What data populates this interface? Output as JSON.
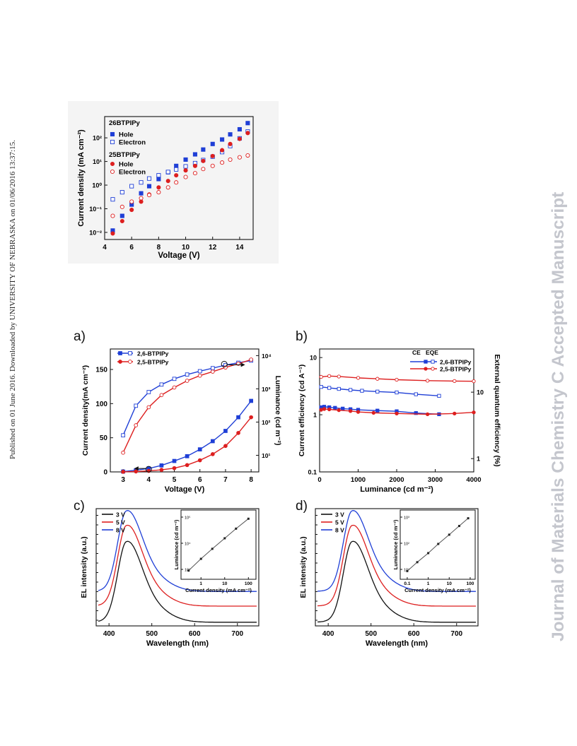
{
  "side_text_left": "Published on 01 June 2016. Downloaded by UNIVERSITY OF NEBRASKA on 01/06/2016 13:37:15.",
  "side_text_right": "Journal of Materials Chemistry C Accepted Manuscript",
  "panel_letters": {
    "a": "a)",
    "b": "b)",
    "c": "c)",
    "d": "d)"
  },
  "colors": {
    "blue": "#1f3fd6",
    "red": "#dd1f1f",
    "black": "#111111"
  },
  "chart_data": [
    {
      "id": "top",
      "type": "scatter",
      "xlabel": "Voltage (V)",
      "ylabel": "Current density (mA cm⁻²)",
      "x_ticks": [
        "4",
        "6",
        "8",
        "10",
        "12",
        "14"
      ],
      "y_ticks": [
        "10⁻²",
        "10⁻¹",
        "10⁰",
        "10¹",
        "10²"
      ],
      "xlim": [
        4,
        15
      ],
      "ylim_log10": [
        -2.3,
        2.9
      ],
      "y_scale": "log",
      "legend_groups": [
        "26BTPIPy",
        "25BTPIPy"
      ],
      "series": [
        {
          "name": "Hole",
          "group": "26BTPIPy",
          "color": "#1f3fd6",
          "marker": "filled-square",
          "x": [
            4.6,
            5.3,
            6.0,
            6.7,
            7.3,
            8.0,
            8.7,
            9.3,
            10.0,
            10.7,
            11.3,
            12.0,
            12.7,
            13.3,
            14.0,
            14.6
          ],
          "y": [
            0.012,
            0.05,
            0.15,
            0.45,
            0.9,
            1.8,
            3.5,
            6.5,
            12,
            20,
            32,
            55,
            85,
            140,
            230,
            420
          ]
        },
        {
          "name": "Electron",
          "group": "26BTPIPy",
          "color": "#1f3fd6",
          "marker": "open-square",
          "x": [
            4.6,
            5.3,
            6.0,
            6.7,
            7.3,
            8.0,
            8.7,
            9.3,
            10.0,
            10.7,
            11.3,
            12.0,
            12.7,
            13.3,
            14.0,
            14.6
          ],
          "y": [
            0.25,
            0.5,
            0.9,
            1.3,
            1.9,
            2.6,
            3.6,
            4.6,
            6.2,
            8.5,
            11.5,
            16,
            25,
            45,
            95,
            185
          ]
        },
        {
          "name": "Hole",
          "group": "25BTPIPy",
          "color": "#dd1f1f",
          "marker": "filled-circle",
          "x": [
            4.6,
            5.3,
            6.0,
            6.7,
            7.3,
            8.0,
            8.7,
            9.3,
            10.0,
            10.7,
            11.3,
            12.0,
            12.7,
            13.3,
            14.0,
            14.6
          ],
          "y": [
            0.009,
            0.03,
            0.09,
            0.2,
            0.4,
            0.8,
            1.5,
            2.6,
            4.2,
            6.5,
            10.5,
            17,
            30,
            55,
            90,
            160
          ]
        },
        {
          "name": "Electron",
          "group": "25BTPIPy",
          "color": "#dd1f1f",
          "marker": "open-circle",
          "x": [
            4.6,
            5.3,
            6.0,
            6.7,
            7.3,
            8.0,
            8.7,
            9.3,
            10.0,
            10.7,
            11.3,
            12.0,
            12.7,
            13.3,
            14.0,
            14.6
          ],
          "y": [
            0.05,
            0.12,
            0.2,
            0.28,
            0.38,
            0.5,
            0.8,
            1.3,
            2.2,
            3.2,
            4.8,
            6.5,
            9.0,
            12,
            15,
            18
          ]
        }
      ]
    },
    {
      "id": "a",
      "type": "line",
      "xlabel": "Voltage (V)",
      "ylabel": "Current density(mA cm⁻²)",
      "y2label": "Luminance (cd m⁻²)",
      "x_ticks": [
        "3",
        "4",
        "5",
        "6",
        "7",
        "8"
      ],
      "y_ticks": [
        "0",
        "50",
        "100",
        "150"
      ],
      "y2_ticks": [
        "10¹",
        "10²",
        "10³",
        "10⁴"
      ],
      "xlim": [
        2.5,
        8.3
      ],
      "ylim": [
        0,
        180
      ],
      "y2lim_log10": [
        0.5,
        4.2
      ],
      "y2_scale": "log",
      "legend": [
        "2,6-BTPIPy",
        "2,5-BTPIPy"
      ],
      "series": [
        {
          "name": "2,6-BTPIPy",
          "quantity": "current density",
          "color": "#1f3fd6",
          "marker": "filled-square",
          "x": [
            3,
            3.5,
            4,
            4.5,
            5,
            5.5,
            6,
            6.5,
            7,
            7.5,
            8
          ],
          "y": [
            0.5,
            2.5,
            5,
            9.5,
            16,
            23,
            33,
            45,
            60,
            80,
            104
          ]
        },
        {
          "name": "2,5-BTPIPy",
          "quantity": "current density",
          "color": "#dd1f1f",
          "marker": "filled-circle",
          "x": [
            3,
            3.5,
            4,
            4.5,
            5,
            5.5,
            6,
            6.5,
            7,
            7.5,
            8
          ],
          "y": [
            0.1,
            0.6,
            1.5,
            3,
            5.5,
            10,
            17,
            26,
            38,
            57,
            80
          ]
        },
        {
          "name": "2,6-BTPIPy",
          "quantity": "luminance",
          "color": "#1f3fd6",
          "marker": "open-square",
          "x": [
            3,
            3.5,
            4,
            4.5,
            5,
            5.5,
            6,
            6.5,
            7,
            7.5,
            8
          ],
          "y": [
            40,
            310,
            800,
            1350,
            2000,
            2700,
            3400,
            4200,
            5200,
            6100,
            7100
          ]
        },
        {
          "name": "2,5-BTPIPy",
          "quantity": "luminance",
          "color": "#dd1f1f",
          "marker": "open-circle",
          "x": [
            3,
            3.5,
            4,
            4.5,
            5,
            5.5,
            6,
            6.5,
            7,
            7.5,
            8
          ],
          "y": [
            12,
            80,
            280,
            650,
            1100,
            1750,
            2500,
            3300,
            4400,
            5700,
            7600
          ]
        }
      ]
    },
    {
      "id": "b",
      "type": "line",
      "xlabel": "Luminance (cd m⁻²)",
      "ylabel": "Current efficiency (cd A⁻¹)",
      "y2label": "External quantum efficiency (%)",
      "x_ticks": [
        "0",
        "1000",
        "2000",
        "3000",
        "4000"
      ],
      "y_ticks": [
        "0.1",
        "1",
        "10"
      ],
      "y2_ticks": [
        "1",
        "10"
      ],
      "xlim": [
        0,
        4000
      ],
      "ylim_log10": [
        -1,
        1.15
      ],
      "y_scale": "log",
      "legend": {
        "header": [
          "CE",
          "EQE"
        ],
        "rows": [
          "2,6-BTPIPy",
          "2,5-BTPIPy"
        ]
      },
      "series": [
        {
          "name": "2,6-BTPIPy",
          "quantity": "CE",
          "color": "#1f3fd6",
          "marker": "filled-square",
          "x": [
            40,
            120,
            250,
            400,
            600,
            800,
            1000,
            1500,
            2000,
            2500,
            3100
          ],
          "y": [
            1.35,
            1.38,
            1.35,
            1.32,
            1.28,
            1.25,
            1.22,
            1.18,
            1.15,
            1.07,
            1.02
          ]
        },
        {
          "name": "2,5-BTPIPy",
          "quantity": "CE",
          "color": "#dd1f1f",
          "marker": "filled-circle",
          "x": [
            40,
            120,
            250,
            500,
            800,
            1000,
            1400,
            2000,
            2800,
            3500,
            4000
          ],
          "y": [
            1.22,
            1.26,
            1.24,
            1.2,
            1.16,
            1.12,
            1.08,
            1.05,
            1.02,
            1.05,
            1.1
          ]
        },
        {
          "name": "2,6-BTPIPy",
          "quantity": "EQE",
          "color": "#1f3fd6",
          "marker": "open-square",
          "x": [
            40,
            250,
            500,
            800,
            1100,
            1500,
            2000,
            2500,
            3100
          ],
          "y": [
            12,
            11.6,
            11.2,
            10.8,
            10.5,
            10.2,
            9.9,
            9.3,
            8.8
          ]
        },
        {
          "name": "2,5-BTPIPy",
          "quantity": "EQE",
          "color": "#dd1f1f",
          "marker": "open-circle",
          "x": [
            40,
            250,
            500,
            1000,
            1500,
            2000,
            2800,
            3500,
            4000
          ],
          "y": [
            17,
            17.5,
            17.2,
            16.4,
            15.9,
            15.4,
            14.9,
            14.7,
            14.6
          ]
        }
      ]
    },
    {
      "id": "c",
      "type": "line",
      "xlabel": "Wavelength (nm)",
      "ylabel": "EL intensity (a.u.)",
      "x_ticks": [
        "400",
        "500",
        "600",
        "700"
      ],
      "xlim": [
        370,
        750
      ],
      "legend": [
        "3 V",
        "5 V",
        "8 V"
      ],
      "peak_nm": 440,
      "series": [
        {
          "name": "3 V",
          "color": "#111111",
          "offset": 0.0,
          "peak": 1.0
        },
        {
          "name": "5 V",
          "color": "#dd1f1f",
          "offset": 0.22,
          "peak": 1.0
        },
        {
          "name": "8 V",
          "color": "#1f3fd6",
          "offset": 0.42,
          "peak": 1.0
        }
      ],
      "inset": {
        "type": "line",
        "xlabel": "Current density (mA cm⁻²)",
        "ylabel": "Luminance (cd m⁻²)",
        "x_ticks": [
          "1",
          "10",
          "100"
        ],
        "y_ticks": [
          "10³",
          "10⁴",
          "10⁵"
        ],
        "x_scale": "log",
        "y_scale": "log",
        "x": [
          0.3,
          1,
          3,
          10,
          30,
          100
        ],
        "y": [
          20,
          80,
          260,
          900,
          2800,
          9000
        ]
      }
    },
    {
      "id": "d",
      "type": "line",
      "xlabel": "Wavelength (nm)",
      "ylabel": "EL intensity (a.u.)",
      "x_ticks": [
        "400",
        "500",
        "600",
        "700"
      ],
      "xlim": [
        370,
        750
      ],
      "legend": [
        "3 V",
        "5 V",
        "8 V"
      ],
      "peak_nm": 455,
      "series": [
        {
          "name": "3 V",
          "color": "#111111",
          "offset": 0.0,
          "peak": 1.0
        },
        {
          "name": "5 V",
          "color": "#dd1f1f",
          "offset": 0.22,
          "peak": 1.0
        },
        {
          "name": "8 V",
          "color": "#1f3fd6",
          "offset": 0.42,
          "peak": 1.0
        }
      ],
      "inset": {
        "type": "line",
        "xlabel": "Current density (mA cm⁻²)",
        "ylabel": "Luminance (cd m⁻²)",
        "x_ticks": [
          "0.1",
          "1",
          "10",
          "100"
        ],
        "y_ticks": [
          "10¹",
          "10²",
          "10³"
        ],
        "x_scale": "log",
        "y_scale": "log",
        "x": [
          0.1,
          0.3,
          1,
          3,
          10,
          30,
          80
        ],
        "y": [
          8,
          25,
          80,
          260,
          850,
          2600,
          7000
        ]
      }
    }
  ]
}
